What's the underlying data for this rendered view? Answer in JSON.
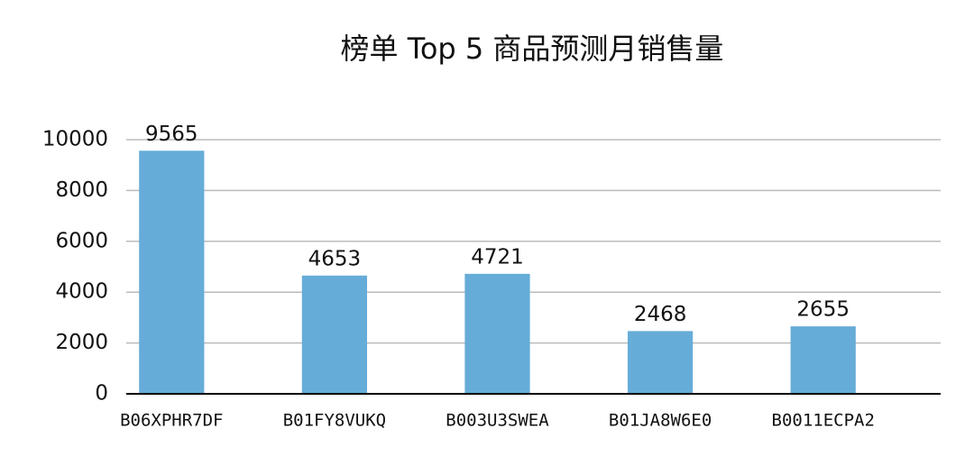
{
  "chart_data": {
    "type": "bar",
    "title": "榜单 Top 5 商品预测月销售量",
    "categories": [
      "B06XPHR7DF",
      "B01FY8VUKQ",
      "B003U3SWEA",
      "B01JA8W6E0",
      "B0011ECPA2"
    ],
    "values": [
      9565,
      4653,
      4721,
      2468,
      2655
    ],
    "color": "#66acd8",
    "ylim": [
      0,
      10000
    ],
    "yticks": [
      0,
      2000,
      4000,
      6000,
      8000,
      10000
    ],
    "grid": true
  }
}
